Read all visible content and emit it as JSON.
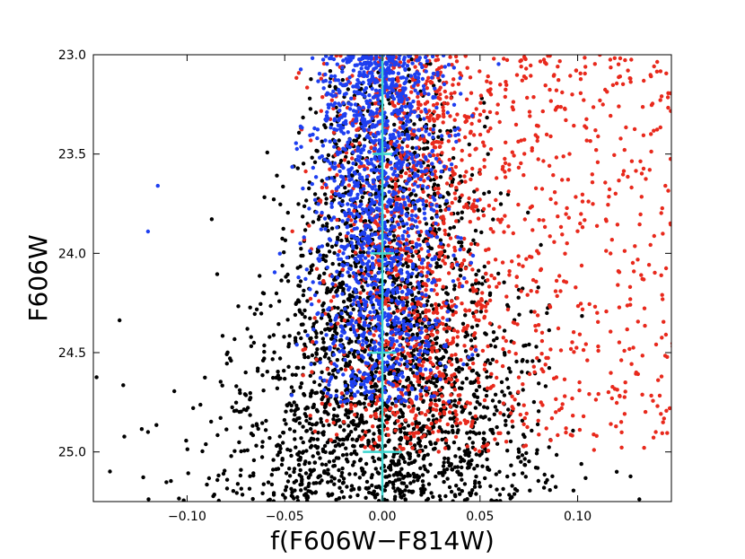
{
  "chart_data": {
    "type": "scatter",
    "title": "",
    "xlabel": "f(F606W−F814W)",
    "ylabel": "F606W",
    "xlim": [
      -0.148,
      0.148
    ],
    "ylim": [
      25.25,
      23.0
    ],
    "y_inverted": true,
    "grid": false,
    "legend": "none",
    "xticks": [
      -0.1,
      -0.05,
      0.0,
      0.05,
      0.1
    ],
    "xtick_labels": [
      "−0.10",
      "−0.05",
      "0.00",
      "0.05",
      "0.10"
    ],
    "yticks": [
      23.0,
      23.5,
      24.0,
      24.5,
      25.0
    ],
    "ytick_labels": [
      "23.0",
      "23.5",
      "24.0",
      "24.5",
      "25.0"
    ],
    "series": [
      {
        "color": "#000000",
        "description_points": [
          [
            0.0,
            25.0
          ],
          [
            -0.03,
            24.9
          ],
          [
            0.03,
            24.8
          ],
          [
            -0.07,
            24.6
          ],
          [
            0.06,
            25.1
          ],
          [
            0.12,
            25.1
          ],
          [
            -0.12,
            24.9
          ],
          [
            0.0,
            24.3
          ]
        ],
        "distribution": {
          "count": 2600,
          "x_center": 0.0,
          "x_sigma_top": 0.015,
          "x_sigma_bottom": 0.045,
          "y_range": [
            23.0,
            25.25
          ],
          "weight_toward": "faint"
        }
      },
      {
        "color": "#e8291c",
        "description_points": [
          [
            0.02,
            23.2
          ],
          [
            0.05,
            23.6
          ],
          [
            0.08,
            24.0
          ],
          [
            0.11,
            24.3
          ],
          [
            0.13,
            24.6
          ],
          [
            0.14,
            24.9
          ]
        ],
        "distribution": {
          "count": 1700,
          "x_center": 0.012,
          "x_sigma": 0.022,
          "tail_to": 0.148,
          "y_range": [
            23.0,
            25.0
          ]
        }
      },
      {
        "color": "#1e3ff0",
        "description_points": [
          [
            -0.01,
            23.2
          ],
          [
            0.0,
            23.6
          ],
          [
            -0.02,
            24.0
          ],
          [
            0.01,
            24.4
          ],
          [
            -0.115,
            23.66
          ],
          [
            -0.12,
            23.89
          ]
        ],
        "distribution": {
          "count": 1500,
          "x_center": -0.002,
          "x_sigma": 0.017,
          "y_range": [
            23.0,
            24.75
          ]
        }
      }
    ],
    "fiducial_line": {
      "color": "#3fd6d0",
      "x": 0.0,
      "y_range": [
        23.0,
        25.25
      ]
    },
    "error_bars": [
      {
        "y": 23.5,
        "xerr": 0.005
      },
      {
        "y": 24.0,
        "xerr": 0.006
      },
      {
        "y": 24.5,
        "xerr": 0.007
      },
      {
        "y": 25.0,
        "xerr": 0.01
      }
    ]
  },
  "colors": {
    "background": "#ffffff",
    "axes": "#000000",
    "black_points": "#000000",
    "red_points": "#e8291c",
    "blue_points": "#1e3ff0",
    "fiducial": "#3fd6d0"
  }
}
